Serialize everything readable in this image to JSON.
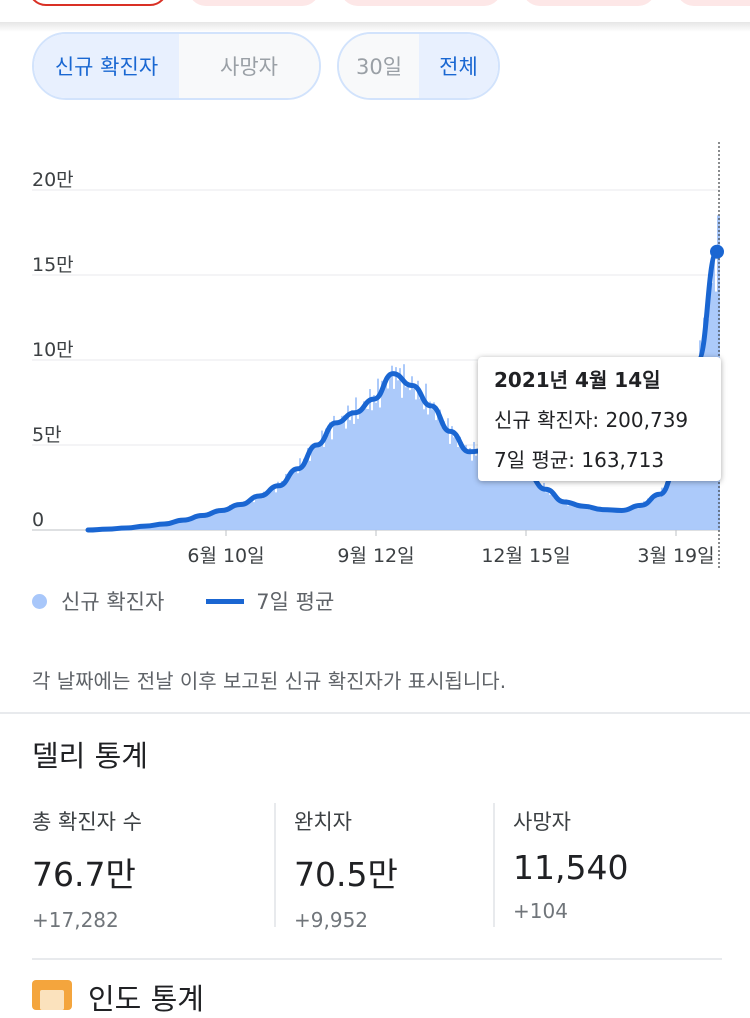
{
  "filters": {
    "metric": {
      "active": "신규 확진자",
      "inactive": "사망자"
    },
    "range": {
      "inactive": "30일",
      "active": "전체"
    }
  },
  "chart_data": {
    "type": "bar",
    "yticks": [
      "20만",
      "15만",
      "10만",
      "5만",
      "0"
    ],
    "xticks": [
      "6월 10일",
      "9월 12일",
      "12월 15일",
      "3월 19일"
    ],
    "ylim": [
      0,
      200000
    ],
    "grid": true,
    "series": [
      {
        "name": "신규 확진자"
      },
      {
        "name": "7일 평균",
        "values": [
          0,
          500,
          1200,
          2300,
          3500,
          5800,
          8500,
          11500,
          15000,
          20000,
          26000,
          36000,
          50000,
          63000,
          69000,
          77000,
          92000,
          85000,
          73000,
          58000,
          46000,
          47000,
          41000,
          34000,
          24000,
          16500,
          14000,
          12000,
          11500,
          14500,
          21000,
          40000,
          100000,
          163713
        ]
      }
    ],
    "tooltip": {
      "date": "2021년 4월 14일",
      "new_cases_label": "신규 확진자: 200,739",
      "avg_label": "7일 평균: 163,713"
    }
  },
  "legend": {
    "cases": "신규 확진자",
    "avg": "7일 평균"
  },
  "note": "각 날짜에는 전날 이후 보고된 신규 확진자가 표시됩니다.",
  "daily": {
    "title": "델리 통계",
    "stats": [
      {
        "label": "총 확진자 수",
        "value": "76.7만",
        "delta": "+17,282"
      },
      {
        "label": "완치자",
        "value": "70.5만",
        "delta": "+9,952"
      },
      {
        "label": "사망자",
        "value": "11,540",
        "delta": "+104"
      }
    ]
  },
  "next_section": {
    "title": "인도 통계"
  },
  "colors": {
    "bar": "#a8c7fa",
    "line": "#1a66d2",
    "accent": "#1967d2"
  }
}
